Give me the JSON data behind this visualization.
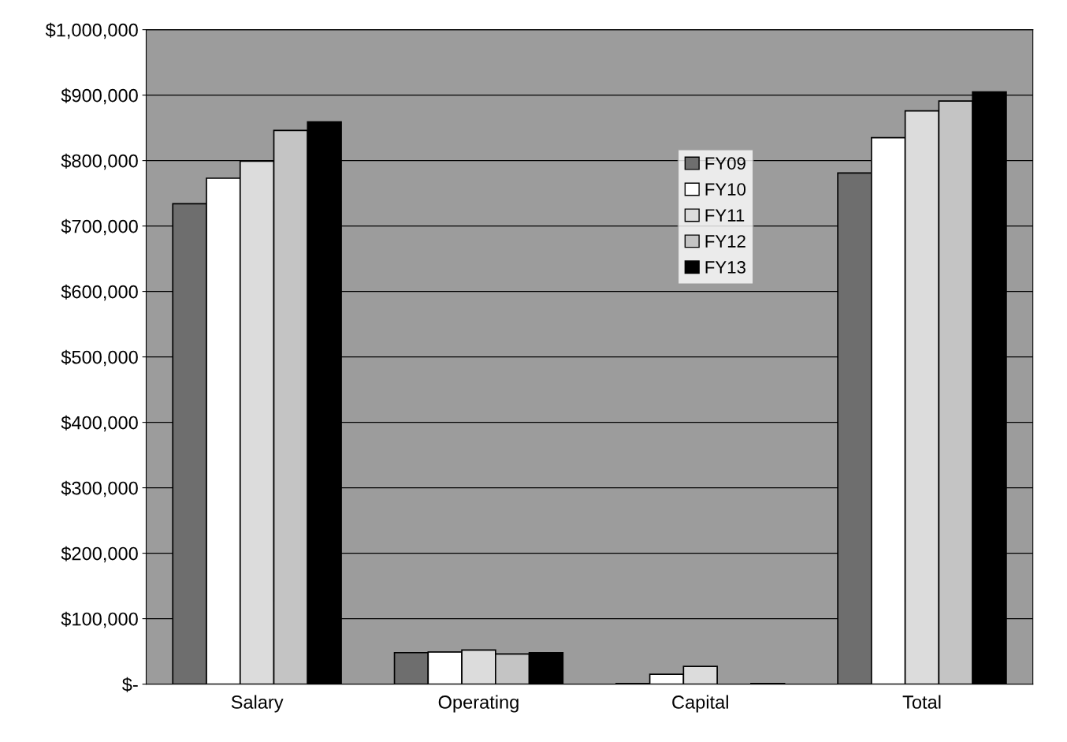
{
  "chart_data": {
    "type": "bar",
    "categories": [
      "Salary",
      "Operating",
      "Capital",
      "Total"
    ],
    "series": [
      {
        "name": "FY09",
        "color": "#6e6e6e",
        "values": [
          734000,
          48000,
          1000,
          781000
        ]
      },
      {
        "name": "FY10",
        "color": "#ffffff",
        "values": [
          773000,
          49000,
          15000,
          835000
        ]
      },
      {
        "name": "FY11",
        "color": "#dcdcdc",
        "values": [
          799000,
          52000,
          27000,
          876000
        ]
      },
      {
        "name": "FY12",
        "color": "#c4c4c4",
        "values": [
          846000,
          46000,
          null,
          891000
        ]
      },
      {
        "name": "FY13",
        "color": "#000000",
        "values": [
          859000,
          48000,
          1000,
          905000
        ]
      }
    ],
    "ylim": [
      0,
      1000000
    ],
    "yticks": [
      {
        "value": 0,
        "label": "$-"
      },
      {
        "value": 100000,
        "label": "$100,000"
      },
      {
        "value": 200000,
        "label": "$200,000"
      },
      {
        "value": 300000,
        "label": "$300,000"
      },
      {
        "value": 400000,
        "label": "$400,000"
      },
      {
        "value": 500000,
        "label": "$500,000"
      },
      {
        "value": 600000,
        "label": "$600,000"
      },
      {
        "value": 700000,
        "label": "$700,000"
      },
      {
        "value": 800000,
        "label": "$800,000"
      },
      {
        "value": 900000,
        "label": "$900,000"
      },
      {
        "value": 1000000,
        "label": "$1,000,000"
      }
    ],
    "grid": "y",
    "legend": "top"
  }
}
